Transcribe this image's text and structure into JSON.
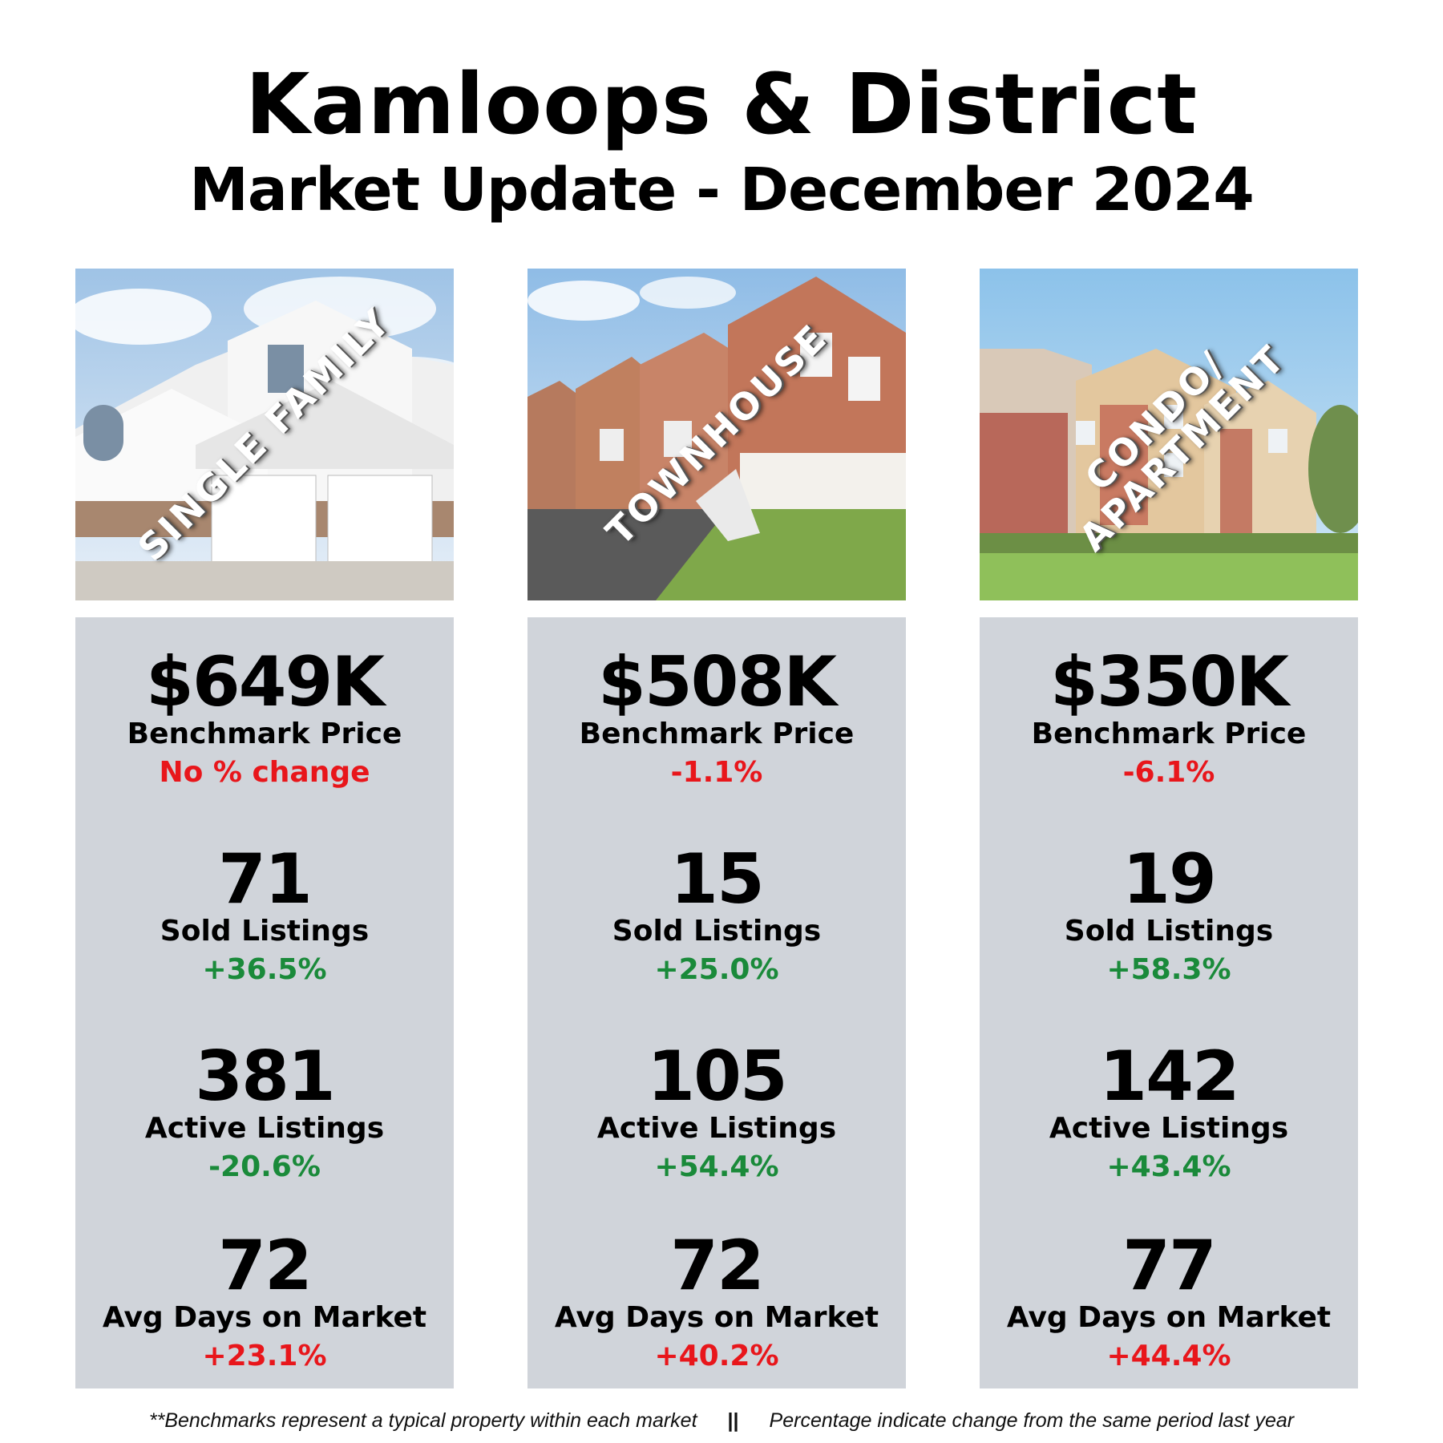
{
  "header": {
    "title": "Kamloops & District",
    "subtitle": "Market Update - December 2024"
  },
  "colors": {
    "panel_bg": "#d0d4da",
    "negative": "#e8161b",
    "positive": "#1a8a3a"
  },
  "columns": [
    {
      "photo_label": "SINGLE FAMILY",
      "benchmark": {
        "value": "$649K",
        "label": "Benchmark Price",
        "change": "No % change",
        "tone": "negative"
      },
      "sold": {
        "value": "71",
        "label": "Sold Listings",
        "change": "+36.5%",
        "tone": "positive"
      },
      "active": {
        "value": "381",
        "label": "Active Listings",
        "change": "-20.6%",
        "tone": "positive"
      },
      "dom": {
        "value": "72",
        "label": "Avg Days on Market",
        "change": "+23.1%",
        "tone": "negative"
      }
    },
    {
      "photo_label": "TOWNHOUSE",
      "benchmark": {
        "value": "$508K",
        "label": "Benchmark Price",
        "change": "-1.1%",
        "tone": "negative"
      },
      "sold": {
        "value": "15",
        "label": "Sold Listings",
        "change": "+25.0%",
        "tone": "positive"
      },
      "active": {
        "value": "105",
        "label": "Active Listings",
        "change": "+54.4%",
        "tone": "positive"
      },
      "dom": {
        "value": "72",
        "label": "Avg Days on Market",
        "change": "+40.2%",
        "tone": "negative"
      }
    },
    {
      "photo_label": "CONDO/\nAPARTMENT",
      "benchmark": {
        "value": "$350K",
        "label": "Benchmark Price",
        "change": "-6.1%",
        "tone": "negative"
      },
      "sold": {
        "value": "19",
        "label": "Sold Listings",
        "change": "+58.3%",
        "tone": "positive"
      },
      "active": {
        "value": "142",
        "label": "Active Listings",
        "change": "+43.4%",
        "tone": "positive"
      },
      "dom": {
        "value": "77",
        "label": "Avg Days on Market",
        "change": "+44.4%",
        "tone": "negative"
      }
    }
  ],
  "footer": {
    "left": "**Benchmarks represent a typical property within each market",
    "separator": "||",
    "right": "Percentage indicate change from the same period last year"
  }
}
